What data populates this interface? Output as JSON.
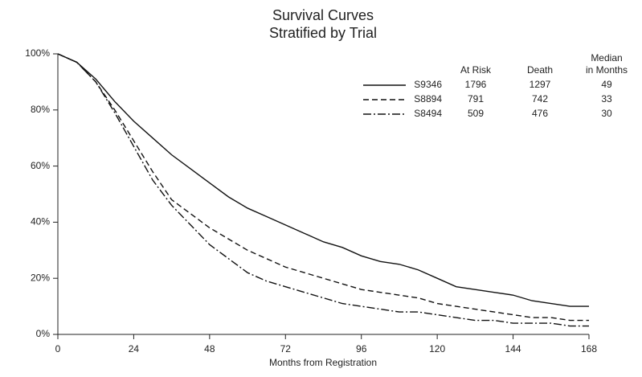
{
  "chart_data": {
    "type": "line",
    "title": "Survival Curves",
    "subtitle": "Stratified by Trial",
    "x_label": "Months from Registration",
    "x": [
      0,
      6,
      12,
      18,
      24,
      30,
      36,
      42,
      48,
      54,
      60,
      66,
      72,
      78,
      84,
      90,
      96,
      102,
      108,
      114,
      120,
      126,
      132,
      138,
      144,
      150,
      156,
      162,
      168
    ],
    "xlim": [
      0,
      168
    ],
    "xticks": [
      0,
      24,
      48,
      72,
      96,
      120,
      144,
      168
    ],
    "ylim": [
      0,
      100
    ],
    "yticks": [
      {
        "value": 0,
        "label": "0%"
      },
      {
        "value": 20,
        "label": "20%"
      },
      {
        "value": 40,
        "label": "40%"
      },
      {
        "value": 60,
        "label": "60%"
      },
      {
        "value": 80,
        "label": "80%"
      },
      {
        "value": 100,
        "label": "100%"
      }
    ],
    "grid": false,
    "legend_headers": [
      [
        "At Risk"
      ],
      [
        "Death"
      ],
      [
        "Median",
        "in Months"
      ]
    ],
    "series": [
      {
        "name": "S9346",
        "color": "#111111",
        "line_style": "solid",
        "at_risk": 1796,
        "deaths": 1297,
        "median": 49,
        "values": [
          100,
          97,
          91,
          83,
          76,
          70,
          64,
          59,
          54,
          49,
          45,
          42,
          39,
          36,
          33,
          31,
          28,
          26,
          25,
          23,
          20,
          17,
          16,
          15,
          14,
          12,
          11,
          10,
          10
        ]
      },
      {
        "name": "S8894",
        "color": "#111111",
        "line_style": "dashed",
        "at_risk": 791,
        "deaths": 742,
        "median": 33,
        "values": [
          100,
          97,
          90,
          80,
          69,
          58,
          48,
          43,
          38,
          34,
          30,
          27,
          24,
          22,
          20,
          18,
          16,
          15,
          14,
          13,
          11,
          10,
          9,
          8,
          7,
          6,
          6,
          5,
          5
        ]
      },
      {
        "name": "S8494",
        "color": "#111111",
        "line_style": "dashdot",
        "at_risk": 509,
        "deaths": 476,
        "median": 30,
        "values": [
          100,
          97,
          90,
          79,
          67,
          55,
          46,
          39,
          32,
          27,
          22,
          19,
          17,
          15,
          13,
          11,
          10,
          9,
          8,
          8,
          7,
          6,
          5,
          5,
          4,
          4,
          4,
          3,
          3
        ]
      }
    ]
  }
}
